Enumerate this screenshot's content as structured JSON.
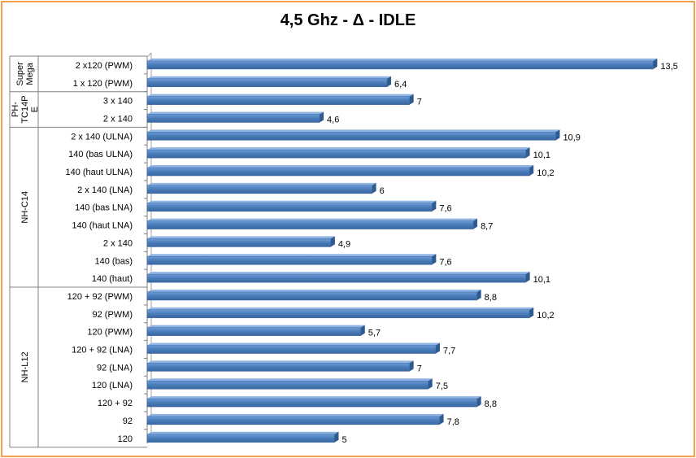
{
  "chart_data": {
    "type": "bar",
    "orientation": "horizontal",
    "title": "4,5 Ghz - Δ - IDLE",
    "xlim": [
      0,
      14
    ],
    "grid": false,
    "legend": "none",
    "bar_color": "#4a7ebb",
    "border_color": "#f5a04a",
    "groups": [
      {
        "name": "Super Mega",
        "name_lines": [
          "Super",
          "Mega"
        ],
        "categories": [
          "2 x120 (PWM)",
          "1 x 120 (PWM)"
        ],
        "values": [
          13.5,
          6.4
        ],
        "labels": [
          "13,5",
          "6,4"
        ]
      },
      {
        "name": "PH-TC14PE",
        "name_lines": [
          "PH-",
          "TC14P",
          "E"
        ],
        "categories": [
          "3 x 140",
          "2 x 140"
        ],
        "values": [
          7,
          4.6
        ],
        "labels": [
          "7",
          "4,6"
        ]
      },
      {
        "name": "NH-C14",
        "name_lines": [
          "NH-C14"
        ],
        "categories": [
          "2 x 140 (ULNA)",
          "140 (bas ULNA)",
          "140 (haut ULNA)",
          "2 x 140 (LNA)",
          "140 (bas LNA)",
          "140 (haut LNA)",
          "2 x 140",
          "140 (bas)",
          "140 (haut)"
        ],
        "values": [
          10.9,
          10.1,
          10.2,
          6,
          7.6,
          8.7,
          4.9,
          7.6,
          10.1
        ],
        "labels": [
          "10,9",
          "10,1",
          "10,2",
          "6",
          "7,6",
          "8,7",
          "4,9",
          "7,6",
          "10,1"
        ]
      },
      {
        "name": "NH-L12",
        "name_lines": [
          "NH-L12"
        ],
        "categories": [
          "120 + 92 (PWM)",
          "92 (PWM)",
          "120 (PWM)",
          "120 + 92 (LNA)",
          "92 (LNA)",
          "120 (LNA)",
          "120 + 92",
          "92",
          "120"
        ],
        "values": [
          8.8,
          10.2,
          5.7,
          7.7,
          7,
          7.5,
          8.8,
          7.8,
          5
        ],
        "labels": [
          "8,8",
          "10,2",
          "5,7",
          "7,7",
          "7",
          "7,5",
          "8,8",
          "7,8",
          "5"
        ]
      }
    ]
  }
}
